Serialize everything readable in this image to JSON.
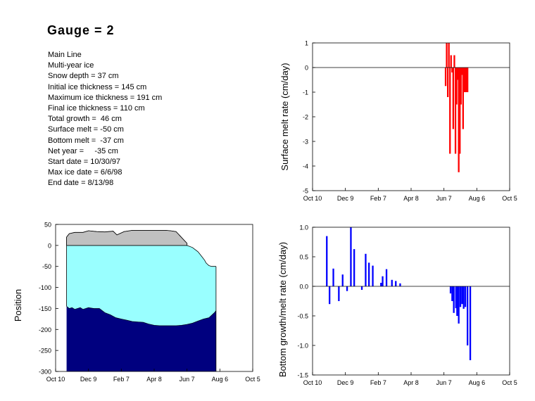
{
  "header": {
    "title": "Gauge = 2",
    "info_lines": [
      "Main Line",
      "Multi-year ice",
      "Snow depth = 37 cm",
      "Initial ice thickness = 145 cm",
      "Maximum ice thickness = 191 cm",
      "Final ice thickness = 110 cm",
      "Total growth =  46 cm",
      "Surface melt = -50 cm",
      "Bottom melt =  -37 cm",
      "Net year =     -35 cm",
      "Start date = 10/30/97",
      "Max ice date = 6/6/98",
      "End date = 8/13/98"
    ]
  },
  "colors": {
    "snow": "#c0c0c0",
    "ice": "#99ffff",
    "below": "#00007f",
    "surface_bars": "#ff0000",
    "bottom_bars": "#0000ff",
    "axis": "#000000"
  },
  "chart_data": [
    {
      "id": "position",
      "type": "area",
      "title": "",
      "xlabel": "",
      "ylabel": "Position",
      "xlim": [
        0,
        360
      ],
      "ylim": [
        -300,
        50
      ],
      "x_ticks": [
        0,
        60,
        120,
        180,
        240,
        300,
        360
      ],
      "x_tick_labels": [
        "Oct 10",
        "Dec 9",
        "Feb 7",
        "Apr 8",
        "Jun 7",
        "Aug 6",
        "Oct 5"
      ],
      "y_ticks": [
        50,
        0,
        -50,
        -100,
        -150,
        -200,
        -250,
        -300
      ],
      "y_tick_labels": [
        "50",
        "0",
        "-50",
        "-100",
        "-150",
        "-200",
        "-250",
        "-300"
      ],
      "series": [
        {
          "key": "snow_surface",
          "x": [
            20,
            25,
            35,
            50,
            60,
            75,
            90,
            105,
            112,
            125,
            140,
            160,
            180,
            190,
            200,
            210,
            220,
            240
          ],
          "y": [
            20,
            28,
            31,
            31,
            35,
            33,
            32,
            34,
            25,
            33,
            36,
            36,
            36,
            36,
            36,
            35,
            33,
            5
          ]
        },
        {
          "key": "ice_surface",
          "x": [
            240,
            250,
            255,
            260,
            263,
            268,
            272,
            275,
            280,
            285,
            293
          ],
          "y": [
            0,
            -5,
            -10,
            -15,
            -20,
            -28,
            -35,
            -42,
            -48,
            -50,
            -50
          ]
        },
        {
          "key": "ice_bottom",
          "x": [
            20,
            25,
            30,
            35,
            40,
            45,
            50,
            55,
            60,
            70,
            80,
            90,
            100,
            110,
            120,
            130,
            140,
            150,
            160,
            170,
            180,
            190,
            200,
            210,
            220,
            230,
            240,
            250,
            260,
            270,
            280,
            290,
            293
          ],
          "y": [
            -145,
            -150,
            -148,
            -152,
            -150,
            -148,
            -152,
            -150,
            -148,
            -150,
            -150,
            -160,
            -165,
            -172,
            -175,
            -178,
            -181,
            -182,
            -183,
            -187,
            -190,
            -191,
            -191,
            -191,
            -191,
            -190,
            -188,
            -185,
            -180,
            -175,
            -172,
            -160,
            -155
          ]
        }
      ]
    },
    {
      "id": "surface_melt",
      "type": "bar",
      "title": "",
      "xlabel": "",
      "ylabel": "Surface melt rate (cm/day)",
      "xlim": [
        0,
        360
      ],
      "ylim": [
        -5,
        1
      ],
      "x_ticks": [
        0,
        60,
        120,
        180,
        240,
        300,
        360
      ],
      "x_tick_labels": [
        "Oct 10",
        "Dec 9",
        "Feb 7",
        "Apr 8",
        "Jun 7",
        "Aug 6",
        "Oct 5"
      ],
      "y_ticks": [
        1,
        0,
        -1,
        -2,
        -3,
        -4,
        -5
      ],
      "y_tick_labels": [
        "1",
        "0",
        "-1",
        "-2",
        "-3",
        "-4",
        "-5"
      ],
      "x": [
        243,
        245,
        247,
        249,
        251,
        253,
        255,
        257,
        259,
        261,
        263,
        265,
        267,
        269,
        271,
        273,
        275,
        277,
        279,
        281,
        283
      ],
      "values": [
        -0.75,
        1.0,
        -1.2,
        1.0,
        -3.5,
        0.5,
        -0.2,
        -2.5,
        0.5,
        -3.5,
        -1.5,
        -0.5,
        -4.25,
        -3.5,
        -1.5,
        -0.3,
        -2.5,
        -1.0,
        -1.0,
        -1.0,
        -1.0
      ]
    },
    {
      "id": "bottom_growth_melt",
      "type": "bar",
      "title": "",
      "xlabel": "",
      "ylabel": "Bottom growth/melt rate (cm/day)",
      "xlim": [
        0,
        360
      ],
      "ylim": [
        -1.5,
        1.0
      ],
      "x_ticks": [
        0,
        60,
        120,
        180,
        240,
        300,
        360
      ],
      "x_tick_labels": [
        "Oct 10",
        "Dec 9",
        "Feb 7",
        "Apr 8",
        "Jun 7",
        "Aug 6",
        "Oct 5"
      ],
      "y_ticks": [
        1.0,
        0.5,
        0.0,
        -0.5,
        -1.0,
        -1.5
      ],
      "y_tick_labels": [
        "1.0",
        "0.5",
        "0.0",
        "-0.5",
        "-1.0",
        "-1.5"
      ],
      "x": [
        26,
        31,
        38,
        48,
        55,
        63,
        70,
        76,
        90,
        97,
        103,
        110,
        115,
        125,
        128,
        135,
        145,
        152,
        160,
        252,
        255,
        258,
        262,
        264,
        267,
        270,
        273,
        276,
        279,
        283,
        288,
        292
      ],
      "values": [
        0.85,
        -0.3,
        0.3,
        -0.25,
        0.2,
        -0.08,
        1.0,
        0.63,
        -0.06,
        0.55,
        0.4,
        0.35,
        0.0,
        0.06,
        0.17,
        0.29,
        0.11,
        0.09,
        0.05,
        -0.12,
        -0.25,
        -0.45,
        -0.37,
        -0.5,
        -0.63,
        -0.35,
        -0.3,
        -0.38,
        -0.35,
        -1.0,
        -1.25,
        0.0
      ]
    }
  ]
}
